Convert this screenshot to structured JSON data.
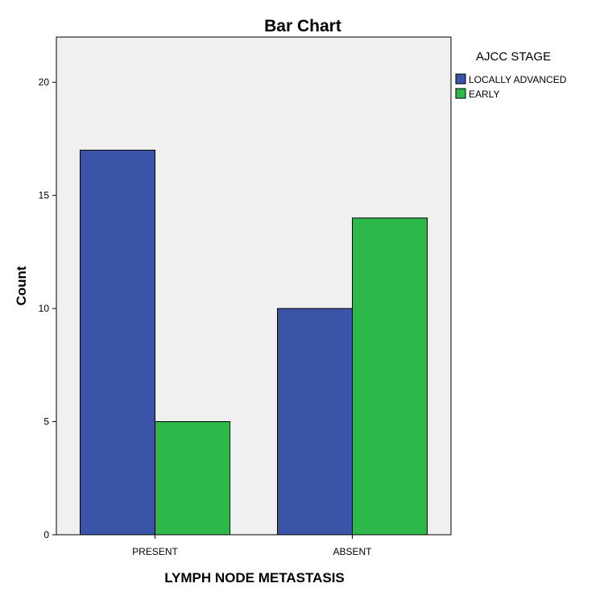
{
  "chart_data": {
    "type": "bar",
    "title": "Bar Chart",
    "xlabel": "LYMPH NODE METASTASIS",
    "ylabel": "Count",
    "categories": [
      "PRESENT",
      "ABSENT"
    ],
    "series": [
      {
        "name": "LOCALLY ADVANCED",
        "values": [
          17,
          10
        ],
        "color": "#3a55a8"
      },
      {
        "name": "EARLY",
        "values": [
          5,
          14
        ],
        "color": "#2fb84a"
      }
    ],
    "ylim": [
      0,
      22
    ],
    "yticks": [
      0,
      5,
      10,
      15,
      20
    ],
    "grid": false,
    "legend": {
      "title": "AJCC STAGE",
      "position": "right"
    },
    "plot_background": "#f0f0f0"
  }
}
